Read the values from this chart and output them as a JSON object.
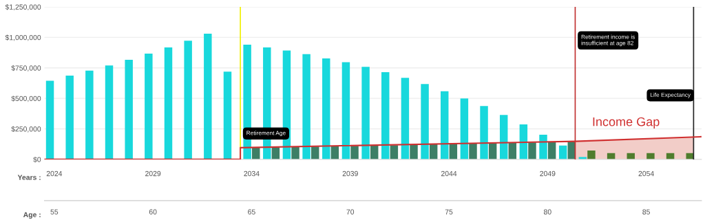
{
  "chart_data": {
    "type": "bar",
    "xlabel": "Years :",
    "x2label": "Age :",
    "x": [
      2024,
      2025,
      2026,
      2027,
      2028,
      2029,
      2030,
      2031,
      2032,
      2033,
      2034,
      2035,
      2036,
      2037,
      2038,
      2039,
      2040,
      2041,
      2042,
      2043,
      2044,
      2045,
      2046,
      2047,
      2048,
      2049,
      2050,
      2051,
      2052,
      2053,
      2054,
      2055,
      2056
    ],
    "series": [
      {
        "color": "#18d8dc",
        "values": [
          644000,
          687000,
          728000,
          770000,
          816000,
          867000,
          918000,
          972000,
          1030000,
          719000,
          940000,
          918000,
          893000,
          863000,
          828000,
          796000,
          758000,
          715000,
          668000,
          618000,
          559000,
          499000,
          437000,
          364000,
          287000,
          203000,
          114000,
          19000,
          null,
          null,
          null,
          null,
          null
        ]
      },
      {
        "colors": [
          "#3d7f66",
          "#3d7f66",
          "#3d7f66",
          "#3d7f66",
          "#3d7f66",
          "#3d7f66",
          "#3d7f66",
          "#3d7f66",
          "#3d7f66",
          "#3d7f66",
          "#3d7f66",
          "#3d7f66",
          "#3d7f66",
          "#3d7f66",
          "#3d7f66",
          "#3d7f66",
          "#3d7f66",
          "#3d7f66",
          "#3d7f66",
          "#3d7f66",
          "#3d7f66",
          "#3d7f66",
          "#3d7f66",
          "#3d7f66",
          "#3d7f66",
          "#3d7f66",
          "#3d7f66",
          "#4f7d2e",
          "#4f7d2e",
          "#4f7d2e",
          "#4f7d2e",
          "#4f7d2e",
          "#4f7d2e"
        ],
        "values": [
          null,
          null,
          null,
          null,
          null,
          null,
          null,
          null,
          null,
          null,
          96000,
          99000,
          102000,
          105000,
          108000,
          111000,
          114000,
          117000,
          120000,
          124000,
          127000,
          130000,
          133000,
          136000,
          139000,
          142000,
          148000,
          73000,
          52000,
          52000,
          52000,
          52000,
          52000
        ]
      },
      {
        "type": "area",
        "color": "#f2cdc8",
        "x": [
          2050.4,
          2056.4
        ],
        "values": [
          148000,
          184000
        ]
      },
      {
        "type": "line",
        "color": "#d03030",
        "x": [
          2023.5,
          2033.43,
          2033.43,
          2050.4,
          2056.8
        ],
        "values": [
          0,
          0,
          96000,
          148000,
          186000
        ]
      }
    ],
    "xlim": [
      2023.5,
      2056.8
    ],
    "xticks": [
      2024,
      2029,
      2034,
      2039,
      2044,
      2049,
      2054
    ],
    "x2lim": [
      54.5,
      87.8
    ],
    "x2ticks": [
      55,
      60,
      65,
      70,
      75,
      80,
      85
    ],
    "ylim": [
      0,
      1250000
    ],
    "yticks": [
      {
        "value": 0,
        "label": "$0"
      },
      {
        "value": 250000,
        "label": "$250,000"
      },
      {
        "value": 500000,
        "label": "$500,000"
      },
      {
        "value": 750000,
        "label": "$750,000"
      },
      {
        "value": 1000000,
        "label": "$1,000,000"
      },
      {
        "value": 1250000,
        "label": "$1,250,000"
      }
    ],
    "grid": "y",
    "ref_lines": [
      {
        "axis": "x",
        "value": 2033.43,
        "label": "Retirement Age",
        "color": "#f0f000"
      },
      {
        "axis": "x",
        "value": 2050.4,
        "label": "Retirement income is\ninsufficient at age 82",
        "color": "#c03030"
      },
      {
        "axis": "x",
        "value": 2056.4,
        "label": "Life Expectancy",
        "color": "#222222"
      }
    ],
    "annotations": [
      "Income Gap"
    ]
  }
}
